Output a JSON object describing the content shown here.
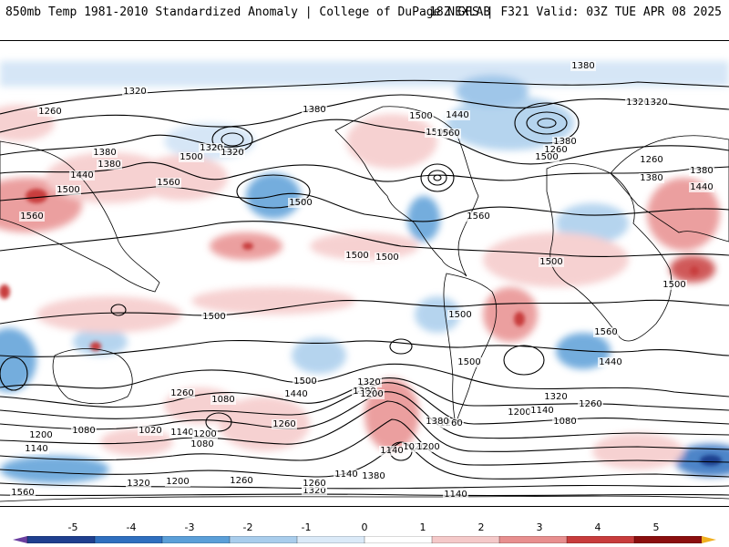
{
  "header": {
    "title_left": "850mb Temp 1981-2010 Standardized Anomaly | College of DuPage NEXLAB",
    "title_right": "18Z GFS | F321 Valid: 03Z TUE APR 08 2025"
  },
  "colorbar": {
    "tick_labels": [
      "-5",
      "-4",
      "-3",
      "-2",
      "-1",
      "0",
      "1",
      "2",
      "3",
      "4",
      "5"
    ],
    "colors": [
      "#6b3fa0",
      "#1f3f8f",
      "#2f6fbf",
      "#5b9fd8",
      "#a9cdec",
      "#dbeaf8",
      "#ffffff",
      "#f5c9c9",
      "#e88f8f",
      "#c83c3c",
      "#8b0f0f",
      "#f0b020"
    ]
  },
  "map": {
    "contour_labels": [
      "1320",
      "1260",
      "1380",
      "1440",
      "1500",
      "1560",
      "1320",
      "1380",
      "1500",
      "1560",
      "1500",
      "1320",
      "1380",
      "1500",
      "1440",
      "1500",
      "1560",
      "1380",
      "1260",
      "1500",
      "1440",
      "1380",
      "1260",
      "1380",
      "1320",
      "1380",
      "1500",
      "1500",
      "1500",
      "1500",
      "1560",
      "1500",
      "1500",
      "1560",
      "1440",
      "1500",
      "1320",
      "1260",
      "1080",
      "1140",
      "1200",
      "1380",
      "1320",
      "1200",
      "1320",
      "1260",
      "1200",
      "1140",
      "1080",
      "1260",
      "1200",
      "1140",
      "1020",
      "1080",
      "1080",
      "1020",
      "1140",
      "1200",
      "1260",
      "1140",
      "1200",
      "1380",
      "1320",
      "1260",
      "1140",
      "1560",
      "1500",
      "1440",
      "1380",
      "1320",
      "1260"
    ]
  }
}
